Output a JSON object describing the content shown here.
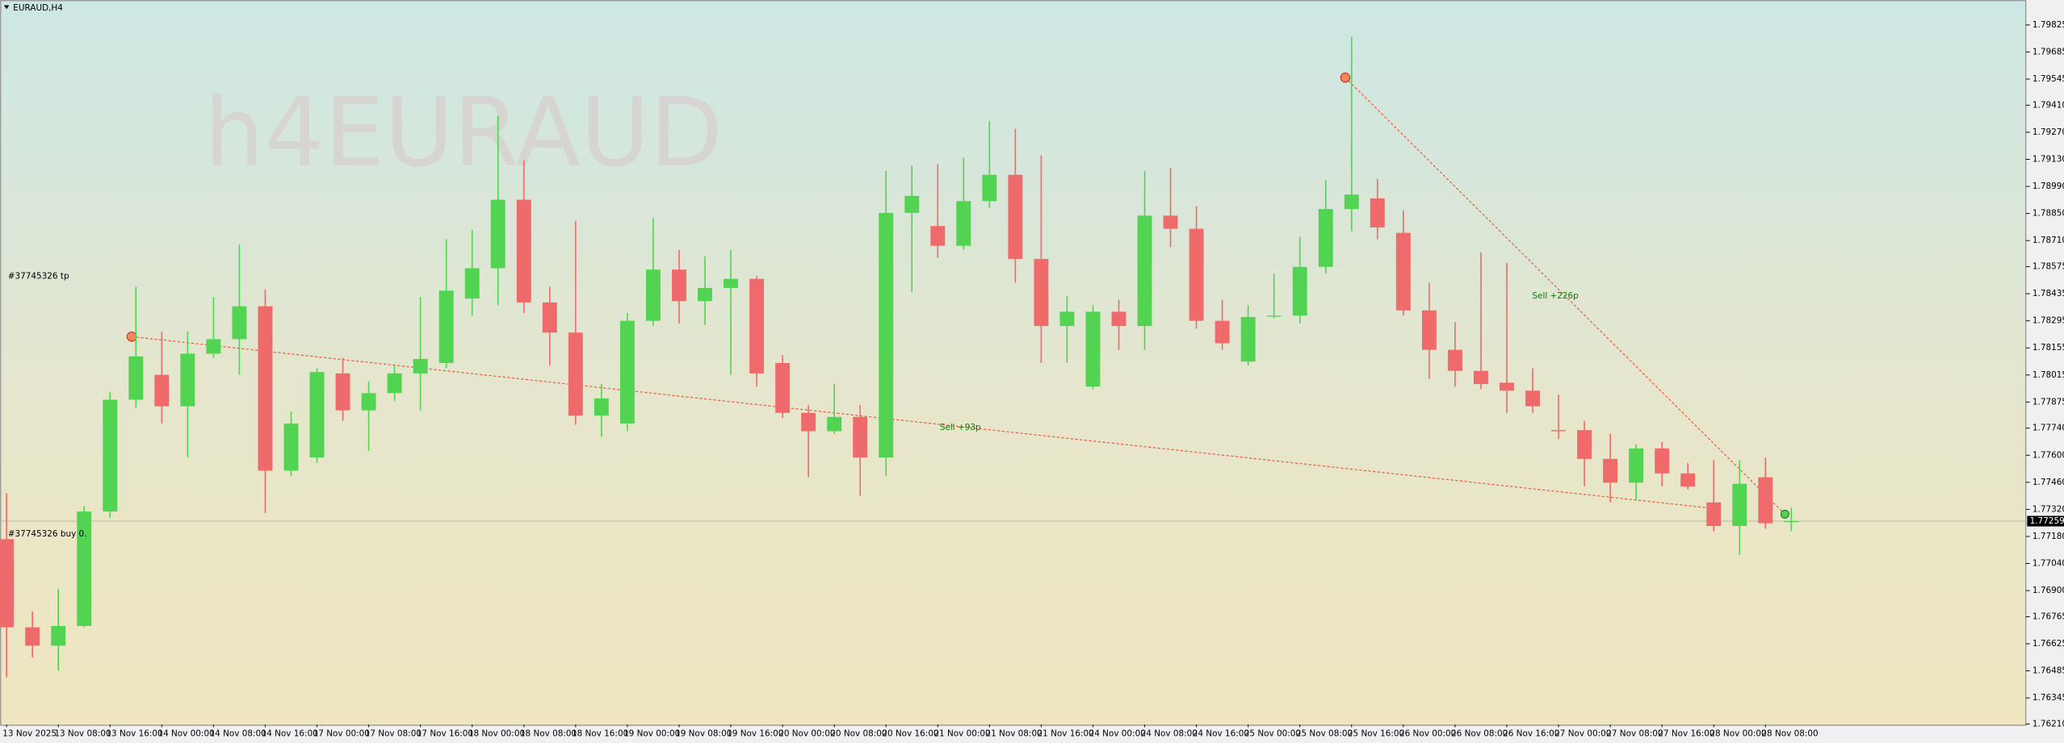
{
  "chart_data": {
    "type": "candlestick",
    "title": "EURAUD,H4",
    "watermark": "h4EURAUD",
    "colors": {
      "up": "#52d452",
      "down": "#ef6b6b"
    },
    "categories": [
      "13 Nov 2025",
      null,
      "13 Nov 08:00",
      null,
      "13 Nov 16:00",
      null,
      "14 Nov 00:00",
      null,
      "14 Nov 08:00",
      null,
      "14 Nov 16:00",
      null,
      "17 Nov 00:00",
      null,
      "17 Nov 08:00",
      null,
      "17 Nov 16:00",
      null,
      "18 Nov 00:00",
      null,
      "18 Nov 08:00",
      null,
      "18 Nov 16:00",
      null,
      "19 Nov 00:00",
      null,
      "19 Nov 08:00",
      null,
      "19 Nov 16:00",
      null,
      "20 Nov 00:00",
      null,
      "20 Nov 08:00",
      null,
      "20 Nov 16:00",
      null,
      "21 Nov 00:00",
      null,
      "21 Nov 08:00",
      null,
      "21 Nov 16:00",
      null,
      "24 Nov 00:00",
      null,
      "24 Nov 08:00",
      null,
      "24 Nov 16:00",
      null,
      "25 Nov 00:00",
      null,
      "25 Nov 08:00",
      null,
      "25 Nov 16:00",
      null,
      "26 Nov 00:00",
      null,
      "26 Nov 08:00",
      null,
      "26 Nov 16:00",
      null,
      "27 Nov 00:00",
      null,
      "27 Nov 08:00",
      null,
      "27 Nov 16:00",
      null,
      "28 Nov 00:00",
      null,
      "28 Nov 08:00",
      null
    ],
    "open": [
      1.77166,
      1.7671,
      1.76615,
      1.76717,
      1.77309,
      1.77887,
      1.78016,
      1.77853,
      1.78125,
      1.782,
      1.7837,
      1.7752,
      1.77588,
      1.78023,
      1.77832,
      1.77921,
      1.78023,
      1.78077,
      1.7841,
      1.78567,
      1.78921,
      1.7839,
      1.78234,
      1.77805,
      1.77764,
      1.78295,
      1.7856,
      1.78397,
      1.78465,
      1.78512,
      1.78077,
      1.77819,
      1.77724,
      1.77798,
      1.77588,
      1.78853,
      1.78785,
      1.78683,
      1.78914,
      1.7905,
      1.78615,
      1.78268,
      1.77955,
      1.78342,
      1.78268,
      1.78839,
      1.78771,
      1.78295,
      1.78084,
      1.78322,
      1.78322,
      1.78574,
      1.78873,
      1.78928,
      1.7875,
      1.78349,
      1.78145,
      1.78036,
      1.77975,
      1.77934,
      1.7773,
      1.7773,
      1.77581,
      1.77458,
      1.77635,
      1.77506,
      1.77356,
      1.77234,
      1.77486,
      1.77254
    ],
    "high": [
      1.77404,
      1.76792,
      1.76908,
      1.77336,
      1.77928,
      1.78472,
      1.7824,
      1.7824,
      1.78417,
      1.78689,
      1.78458,
      1.77826,
      1.7805,
      1.78104,
      1.77982,
      1.7807,
      1.78417,
      1.78717,
      1.78764,
      1.79356,
      1.79125,
      1.78472,
      1.78812,
      1.77968,
      1.78336,
      1.78826,
      1.78662,
      1.78628,
      1.78662,
      1.78526,
      1.78118,
      1.7786,
      1.77968,
      1.7786,
      1.7907,
      1.79097,
      1.79104,
      1.79138,
      1.79329,
      1.79288,
      1.79152,
      1.78424,
      1.78376,
      1.78404,
      1.7907,
      1.79084,
      1.78887,
      1.78404,
      1.78376,
      1.7854,
      1.7873,
      1.79023,
      1.79764,
      1.79029,
      1.78866,
      1.78492,
      1.78288,
      1.78649,
      1.78594,
      1.7805,
      1.77914,
      1.77778,
      1.7771,
      1.77656,
      1.77669,
      1.7756,
      1.77574,
      1.77574,
      1.77588,
      1.77329
    ],
    "low": [
      1.76452,
      1.76554,
      1.76486,
      1.7671,
      1.77275,
      1.77846,
      1.77764,
      1.77588,
      1.78104,
      1.78016,
      1.77302,
      1.77492,
      1.7756,
      1.77778,
      1.77622,
      1.7788,
      1.77832,
      1.7805,
      1.78322,
      1.78376,
      1.78336,
      1.78064,
      1.77758,
      1.77696,
      1.77724,
      1.78268,
      1.78281,
      1.78274,
      1.78016,
      1.77955,
      1.77792,
      1.77486,
      1.7771,
      1.7739,
      1.77492,
      1.78444,
      1.78621,
      1.78662,
      1.7888,
      1.78492,
      1.78077,
      1.78077,
      1.77941,
      1.78145,
      1.78145,
      1.78676,
      1.78254,
      1.78145,
      1.78064,
      1.78308,
      1.78281,
      1.7854,
      1.78757,
      1.78717,
      1.78322,
      1.77996,
      1.77955,
      1.77941,
      1.77819,
      1.77819,
      1.77683,
      1.77438,
      1.77356,
      1.7737,
      1.77438,
      1.77424,
      1.77207,
      1.77084,
      1.7722,
      1.77207
    ],
    "close": [
      1.7671,
      1.76615,
      1.76717,
      1.77309,
      1.77887,
      1.78111,
      1.77853,
      1.78125,
      1.782,
      1.7837,
      1.7752,
      1.77764,
      1.7803,
      1.77832,
      1.77921,
      1.78023,
      1.78098,
      1.78451,
      1.78567,
      1.78921,
      1.7839,
      1.78234,
      1.77805,
      1.77894,
      1.78295,
      1.7856,
      1.78397,
      1.78465,
      1.78512,
      1.78023,
      1.77819,
      1.77724,
      1.77798,
      1.77588,
      1.78853,
      1.78941,
      1.78683,
      1.78914,
      1.7905,
      1.78615,
      1.78268,
      1.78342,
      1.78342,
      1.78268,
      1.78839,
      1.78771,
      1.78295,
      1.78179,
      1.78315,
      1.78322,
      1.78574,
      1.78873,
      1.78948,
      1.78778,
      1.78349,
      1.78145,
      1.78036,
      1.77968,
      1.77934,
      1.77853,
      1.77724,
      1.77581,
      1.77458,
      1.77635,
      1.77506,
      1.77438,
      1.77234,
      1.77452,
      1.77248,
      1.77259
    ],
    "ylim": [
      1.76207,
      1.79954
    ],
    "yticks": [
      1.79825,
      1.79685,
      1.79545,
      {
        "value": 1.7941,
        "label": "1.79410"
      },
      {
        "value": 1.7927,
        "label": "1.79270"
      },
      {
        "value": 1.7913,
        "label": "1.79130"
      },
      {
        "value": 1.7899,
        "label": "1.78990"
      },
      {
        "value": 1.7885,
        "label": "1.78850"
      },
      {
        "value": 1.7871,
        "label": "1.78710"
      },
      1.78575,
      1.78435,
      1.78295,
      1.78155,
      1.78015,
      1.77875,
      {
        "value": 1.7774,
        "label": "1.77740"
      },
      {
        "value": 1.776,
        "label": "1.77600"
      },
      {
        "value": 1.7746,
        "label": "1.77460"
      },
      {
        "value": 1.7732,
        "label": "1.77320"
      },
      {
        "value": 1.7718,
        "label": "1.77180"
      },
      {
        "value": 1.7704,
        "label": "1.77040"
      },
      {
        "value": 1.769,
        "label": "1.76900"
      },
      1.76765,
      1.76625,
      1.76485,
      1.76345,
      {
        "value": 1.7621,
        "label": "1.76210"
      }
    ],
    "current_price": 1.77259,
    "annotations": [
      "#37745326 tp",
      "#37745326 buy 0.",
      "Sell +93p",
      "Sell +226p"
    ]
  }
}
